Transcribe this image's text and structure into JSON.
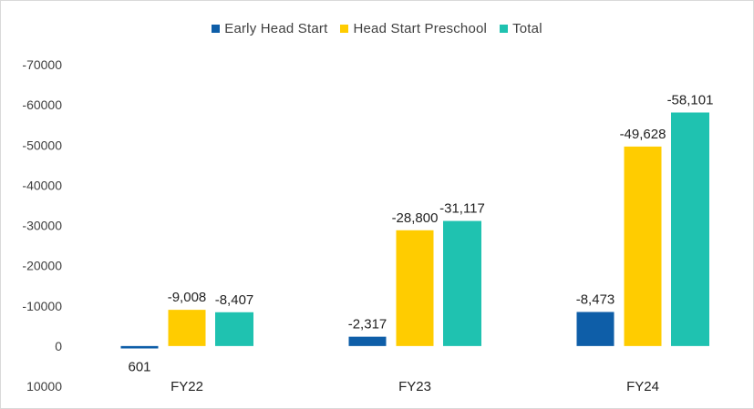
{
  "chart_data": {
    "type": "bar",
    "title": "",
    "xlabel": "",
    "ylabel": "",
    "y_axis_reversed": true,
    "ylim": [
      -70000,
      10000
    ],
    "yticks": [
      -70000,
      -60000,
      -50000,
      -40000,
      -30000,
      -20000,
      -10000,
      0,
      10000
    ],
    "ytick_labels": [
      "-70000",
      "-60000",
      "-50000",
      "-40000",
      "-30000",
      "-20000",
      "-10000",
      "0",
      "10000"
    ],
    "grid": false,
    "legend_position": "top-center",
    "categories": [
      "FY22",
      "FY23",
      "FY24"
    ],
    "series": [
      {
        "name": "Early Head Start",
        "color": "#0e5ea8",
        "values": [
          601,
          -2317,
          -8473
        ],
        "labels": [
          "601",
          "-2,317",
          "-8,473"
        ]
      },
      {
        "name": "Head Start Preschool",
        "color": "#ffcc00",
        "values": [
          -9008,
          -28800,
          -49628
        ],
        "labels": [
          "-9,008",
          "-28,800",
          "-49,628"
        ]
      },
      {
        "name": "Total",
        "color": "#1fc2b0",
        "values": [
          -8407,
          -31117,
          -58101
        ],
        "labels": [
          "-8,407",
          "-31,117",
          "-58,101"
        ]
      }
    ]
  }
}
